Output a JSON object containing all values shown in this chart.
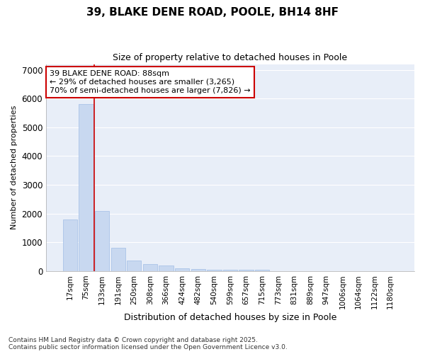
{
  "title": "39, BLAKE DENE ROAD, POOLE, BH14 8HF",
  "subtitle": "Size of property relative to detached houses in Poole",
  "xlabel": "Distribution of detached houses by size in Poole",
  "ylabel": "Number of detached properties",
  "bar_color": "#c8d8f0",
  "bar_edgecolor": "#aac4e8",
  "background_color": "#e8eef8",
  "grid_color": "#ffffff",
  "fig_background": "#ffffff",
  "categories": [
    "17sqm",
    "75sqm",
    "133sqm",
    "191sqm",
    "250sqm",
    "308sqm",
    "366sqm",
    "424sqm",
    "482sqm",
    "540sqm",
    "599sqm",
    "657sqm",
    "715sqm",
    "773sqm",
    "831sqm",
    "889sqm",
    "947sqm",
    "1006sqm",
    "1064sqm",
    "1122sqm",
    "1180sqm"
  ],
  "values": [
    1800,
    5800,
    2100,
    820,
    370,
    230,
    200,
    100,
    80,
    50,
    50,
    50,
    50,
    5,
    5,
    3,
    3,
    2,
    2,
    2,
    3
  ],
  "red_line_x": 1.5,
  "annotation_text_line1": "39 BLAKE DENE ROAD: 88sqm",
  "annotation_text_line2": "← 29% of detached houses are smaller (3,265)",
  "annotation_text_line3": "70% of semi-detached houses are larger (7,826) →",
  "annotation_box_color": "#ffffff",
  "annotation_border_color": "#cc0000",
  "footer_line1": "Contains HM Land Registry data © Crown copyright and database right 2025.",
  "footer_line2": "Contains public sector information licensed under the Open Government Licence v3.0.",
  "ylim": [
    0,
    7200
  ],
  "yticks": [
    0,
    1000,
    2000,
    3000,
    4000,
    5000,
    6000,
    7000
  ]
}
